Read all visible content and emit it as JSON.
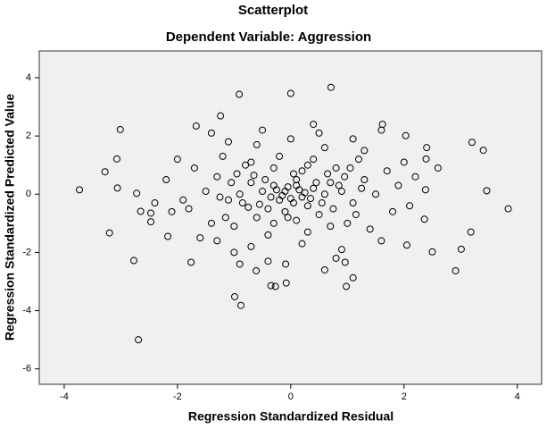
{
  "chart_data": {
    "type": "scatter",
    "title": "Scatterplot",
    "subtitle": "Dependent Variable: Aggression",
    "x_label": "Regression Standardized Residual",
    "y_label": "Regression Standardized Predicted Value",
    "xlim": [
      -4.44,
      4.43
    ],
    "ylim": [
      -6.53,
      4.92
    ],
    "xticks": [
      -4,
      -2,
      0,
      2,
      4
    ],
    "yticks": [
      -6,
      -4,
      -2,
      0,
      2,
      4
    ],
    "color": "#000000",
    "background": "#f0f0f0",
    "x": [
      -3.73,
      -3.01,
      -3.07,
      -3.28,
      -3.06,
      -3.2,
      -2.77,
      -2.69,
      -2.72,
      -2.65,
      -2.47,
      -2.47,
      -2.17,
      -0.91,
      0,
      0.71,
      -1.24,
      -1.67,
      1.62,
      2.03,
      3.2,
      3.4,
      3.46,
      3.84,
      3.18,
      3.01,
      2.91,
      2.5,
      -1.76,
      -0.99,
      -0.88,
      -0.35,
      -0.08,
      -0.27,
      0.98,
      1.1,
      0.96,
      -0.09,
      -0.61,
      2.05,
      2.36,
      2.38,
      2.39,
      -0.1,
      0.2,
      -0.3,
      0.4,
      0.05,
      -0.2,
      0.3,
      -0.5,
      0.6,
      -0.4,
      0.1,
      -0.1,
      0.7,
      -0.7,
      0.5,
      -0.6,
      0.9,
      -0.9,
      0.2,
      -0.3,
      0.1,
      1.1,
      -1.1,
      0.8,
      -0.8,
      1,
      -1,
      1.3,
      -1.3,
      0.4,
      -0.2,
      0.3,
      -0.4,
      1.5,
      -1.5,
      1.2,
      -1.2,
      1.4,
      -1.4,
      0.6,
      -0.6,
      0,
      0.2,
      -0.7,
      1.7,
      -1.7,
      1.8,
      -1.8,
      1.9,
      -1.9,
      2,
      -2,
      2.1,
      -2.1,
      0.9,
      -1,
      1.1,
      -1.1,
      1.6,
      -1.6,
      2.2,
      -2.2,
      0.5,
      -0.5,
      0.8,
      -0.4,
      1.3,
      -1.3,
      0.15,
      -0.15,
      0.25,
      -0.05,
      0.35,
      -0.35,
      0,
      0.1,
      -0.25,
      0.45,
      -0.45,
      0.55,
      -0.55,
      0.65,
      -0.65,
      0.75,
      -0.75,
      0.85,
      -0.85,
      0.95,
      -0.95,
      1.05,
      -1.05,
      1.15,
      -1.15,
      1.25,
      -1.25,
      0.3,
      -0.3,
      0.7,
      -0.7,
      0.05,
      -0.05,
      2.4,
      -2.4,
      2.6,
      1.6,
      -1.4,
      0.4,
      -0.9,
      0.6
    ],
    "values": [
      0.15,
      2.22,
      1.21,
      0.77,
      0.21,
      -1.33,
      -2.28,
      -5,
      0.03,
      -0.59,
      -0.65,
      -0.95,
      -1.45,
      3.43,
      3.46,
      3.67,
      2.69,
      2.34,
      2.4,
      2.01,
      1.78,
      1.51,
      0.12,
      -0.5,
      -1.3,
      -1.89,
      -2.63,
      -1.98,
      -2.34,
      -3.52,
      -3.82,
      -3.14,
      -3.05,
      -3.17,
      -3.17,
      -2.87,
      -2.34,
      -2.4,
      -2.63,
      -1.75,
      -0.86,
      0.15,
      1.21,
      0.1,
      -0.1,
      0.3,
      0.2,
      -0.3,
      -0.2,
      -0.4,
      0.1,
      0,
      -0.5,
      0.5,
      -0.6,
      0.4,
      0.4,
      -0.7,
      -0.8,
      0.1,
      0,
      0.8,
      0.9,
      -0.9,
      -0.3,
      -0.2,
      0.9,
      1,
      -1,
      -1.1,
      0.5,
      0.6,
      1.2,
      1.3,
      -1.3,
      -1.4,
      0,
      0.1,
      1.2,
      1.3,
      -1.2,
      -1,
      1.6,
      1.7,
      1.9,
      -1.7,
      -1.8,
      0.8,
      0.9,
      -0.6,
      -0.5,
      0.3,
      -0.2,
      1.1,
      1.2,
      -0.4,
      -0.6,
      -1.9,
      -2,
      1.9,
      1.8,
      -1.6,
      -1.5,
      0.6,
      0.5,
      2.1,
      2.2,
      -2.2,
      -2.3,
      1.5,
      -1.6,
      0.15,
      -0.05,
      0.05,
      0.25,
      -0.15,
      -0.1,
      -0.15,
      0.3,
      0.15,
      0.4,
      0.5,
      -0.3,
      -0.35,
      0.7,
      0.65,
      -0.5,
      -0.45,
      0.3,
      -0.3,
      0.6,
      0.7,
      0.9,
      0.4,
      -0.7,
      -0.8,
      0.2,
      -0.1,
      1,
      -1,
      -1.1,
      1.1,
      0.7,
      -0.8,
      1.6,
      -0.3,
      0.9,
      2.2,
      2.1,
      2.4,
      -2.4,
      -2.6
    ]
  }
}
